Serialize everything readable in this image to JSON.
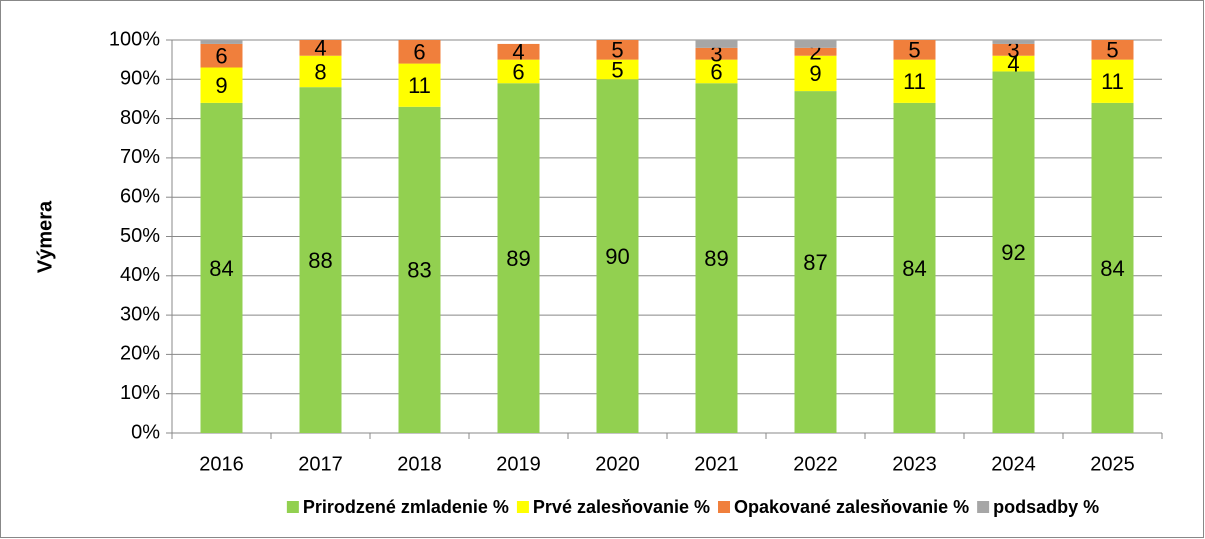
{
  "chart_data": {
    "type": "stacked_bar",
    "y_label": "Výmera",
    "categories": [
      "2016",
      "2017",
      "2018",
      "2019",
      "2020",
      "2021",
      "2022",
      "2023",
      "2024",
      "2025"
    ],
    "series": [
      {
        "name": "Prirodzené zmladenie %",
        "color": "#92d050",
        "data_labels": true,
        "values": [
          84,
          88,
          83,
          89,
          90,
          89,
          87,
          84,
          92,
          84
        ]
      },
      {
        "name": "Prvé zalesňovanie %",
        "color": "#ffff00",
        "data_labels": true,
        "values": [
          9,
          8,
          11,
          6,
          5,
          6,
          9,
          11,
          4,
          11
        ]
      },
      {
        "name": "Opakované zalesňovanie %",
        "color": "#f07f3c",
        "data_labels": true,
        "values": [
          6,
          4,
          6,
          4,
          5,
          3,
          2,
          5,
          3,
          5
        ]
      },
      {
        "name": "podsadby %",
        "color": "#a6a6a6",
        "data_labels": false,
        "values": [
          1,
          0,
          0,
          0,
          0,
          2,
          2,
          0,
          1,
          0
        ]
      }
    ],
    "ylim": [
      0,
      100
    ],
    "yticks": [
      {
        "value": 0,
        "label": "0%"
      },
      {
        "value": 10,
        "label": "10%"
      },
      {
        "value": 20,
        "label": "20%"
      },
      {
        "value": 30,
        "label": "30%"
      },
      {
        "value": 40,
        "label": "40%"
      },
      {
        "value": 50,
        "label": "50%"
      },
      {
        "value": 60,
        "label": "60%"
      },
      {
        "value": 70,
        "label": "70%"
      },
      {
        "value": 80,
        "label": "80%"
      },
      {
        "value": 90,
        "label": "90%"
      },
      {
        "value": 100,
        "label": "100%"
      }
    ],
    "grid": true,
    "legend": "bottom"
  }
}
